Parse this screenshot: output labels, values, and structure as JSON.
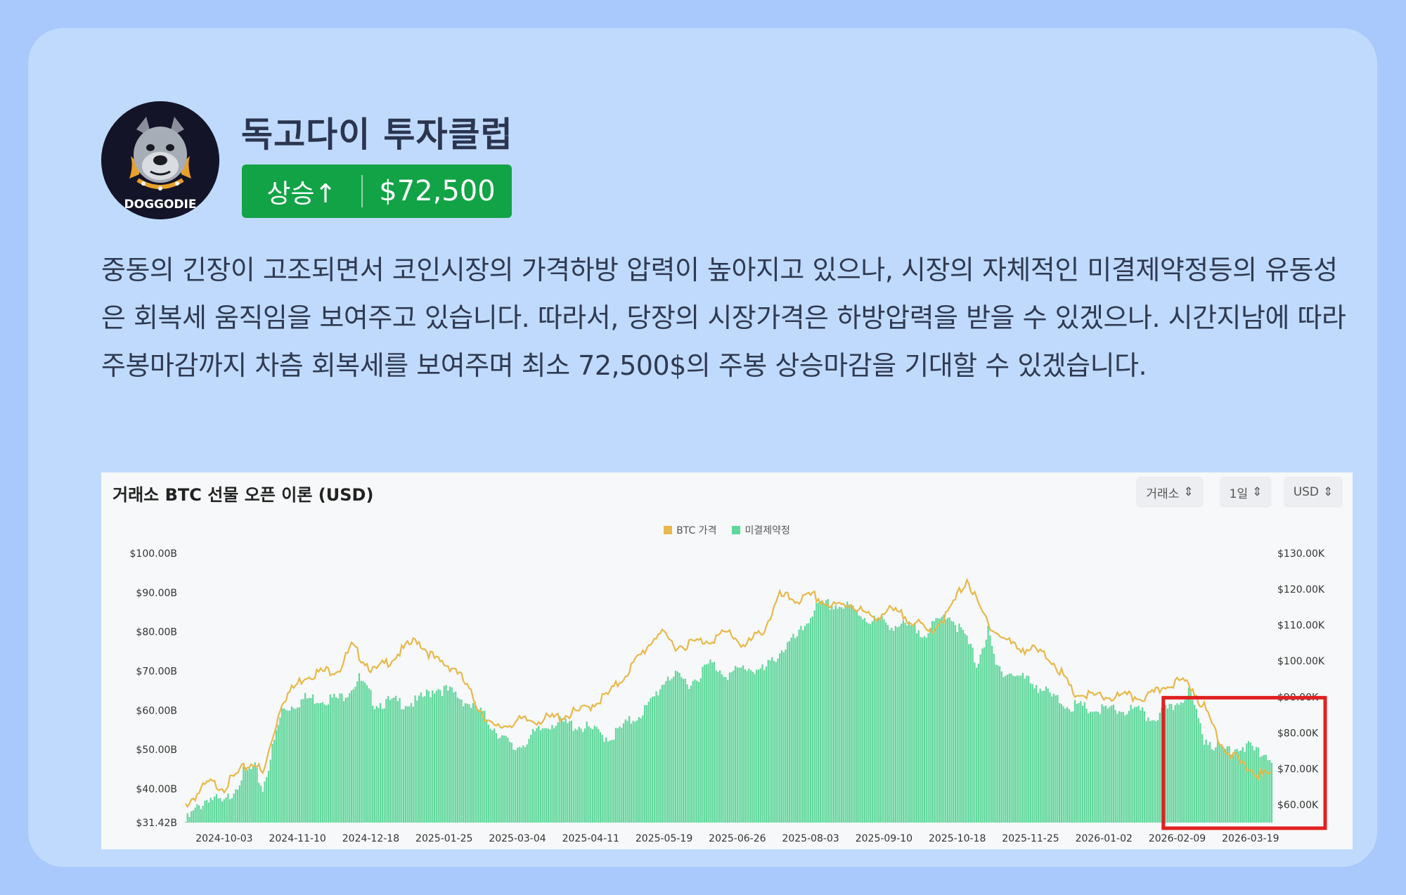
{
  "profile": {
    "name": "독고다이 투자클럽",
    "logo_text": "DOGGODIE"
  },
  "badge": {
    "direction": "상승↑",
    "price": "$72,500",
    "color": "#12a346"
  },
  "description": "중동의 긴장이 고조되면서 코인시장의 가격하방 압력이 높아지고 있으나, 시장의 자체적인 미결제약정등의 유동성은 회복세 움직임을 보여주고 있습니다. 따라서, 당장의 시장가격은 하방압력을 받을 수 있겠으나. 시간지남에 따라 주봉마감까지 차츰 회복세를 보여주며 최소 72,500$의 주봉 상승마감을 기대할 수 있겠습니다.",
  "chart_controls": {
    "exchange": "거래소",
    "interval": "1일",
    "currency": "USD"
  },
  "chart_data": {
    "type": "bar",
    "title": "거래소 BTC 선물 오픈 이론 (USD)",
    "series": [
      {
        "name": "BTC 가격",
        "chart": "line",
        "axis": "right",
        "color": "#e8b84a"
      },
      {
        "name": "미결제약정",
        "chart": "bar",
        "axis": "left",
        "color": "#5fd79b"
      }
    ],
    "categories": [
      "2024-10-03",
      "2024-11-10",
      "2024-12-18",
      "2025-01-25",
      "2025-03-04",
      "2025-04-11",
      "2025-05-19",
      "2025-06-26",
      "2025-08-03",
      "2025-09-10",
      "2025-10-18",
      "2025-11-25",
      "2026-01-02",
      "2026-02-09",
      "2026-03-19"
    ],
    "x_range": [
      "2024-09-13",
      "2026-03-30"
    ],
    "open_interest_b": [
      [
        0,
        31.6
      ],
      [
        6,
        35
      ],
      [
        12,
        38
      ],
      [
        20,
        36
      ],
      [
        30,
        44
      ],
      [
        36,
        45
      ],
      [
        40,
        40
      ],
      [
        50,
        60
      ],
      [
        62,
        63
      ],
      [
        80,
        63
      ],
      [
        90,
        68
      ],
      [
        98,
        62
      ],
      [
        110,
        62
      ],
      [
        120,
        62
      ],
      [
        130,
        66
      ],
      [
        140,
        64
      ],
      [
        152,
        60
      ],
      [
        170,
        50
      ],
      [
        190,
        57
      ],
      [
        205,
        56
      ],
      [
        220,
        53
      ],
      [
        240,
        61
      ],
      [
        250,
        69
      ],
      [
        262,
        67
      ],
      [
        272,
        72
      ],
      [
        282,
        69
      ],
      [
        290,
        71
      ],
      [
        300,
        70
      ],
      [
        308,
        75
      ],
      [
        318,
        79
      ],
      [
        326,
        86
      ],
      [
        335,
        87
      ],
      [
        345,
        86
      ],
      [
        355,
        83
      ],
      [
        365,
        82
      ],
      [
        375,
        81
      ],
      [
        385,
        80
      ],
      [
        395,
        85
      ],
      [
        405,
        78
      ],
      [
        410,
        72
      ],
      [
        416,
        80
      ],
      [
        420,
        71
      ],
      [
        430,
        69
      ],
      [
        440,
        67
      ],
      [
        450,
        63
      ],
      [
        460,
        61
      ],
      [
        472,
        60
      ],
      [
        482,
        60
      ],
      [
        492,
        60
      ],
      [
        500,
        58
      ],
      [
        510,
        60
      ],
      [
        520,
        65
      ],
      [
        528,
        53
      ],
      [
        538,
        50
      ],
      [
        548,
        51
      ],
      [
        558,
        49
      ],
      [
        565,
        48
      ],
      [
        572,
        50
      ],
      [
        578,
        54
      ]
    ],
    "btc_price_k": [
      [
        0,
        60
      ],
      [
        6,
        63
      ],
      [
        12,
        66
      ],
      [
        20,
        65
      ],
      [
        30,
        70
      ],
      [
        36,
        72
      ],
      [
        40,
        68
      ],
      [
        50,
        89
      ],
      [
        62,
        96
      ],
      [
        80,
        98
      ],
      [
        86,
        104
      ],
      [
        98,
        97
      ],
      [
        110,
        102
      ],
      [
        120,
        106
      ],
      [
        130,
        100
      ],
      [
        140,
        98
      ],
      [
        152,
        87
      ],
      [
        160,
        81
      ],
      [
        170,
        83
      ],
      [
        190,
        84
      ],
      [
        205,
        86
      ],
      [
        220,
        91
      ],
      [
        235,
        101
      ],
      [
        245,
        108
      ],
      [
        255,
        104
      ],
      [
        262,
        105
      ],
      [
        272,
        106
      ],
      [
        282,
        108
      ],
      [
        290,
        104
      ],
      [
        300,
        109
      ],
      [
        308,
        118
      ],
      [
        318,
        117
      ],
      [
        326,
        118
      ],
      [
        335,
        115
      ],
      [
        345,
        116
      ],
      [
        355,
        112
      ],
      [
        365,
        114
      ],
      [
        375,
        112
      ],
      [
        385,
        108
      ],
      [
        395,
        113
      ],
      [
        405,
        123
      ],
      [
        412,
        114
      ],
      [
        420,
        108
      ],
      [
        430,
        104
      ],
      [
        440,
        103
      ],
      [
        450,
        100
      ],
      [
        460,
        91
      ],
      [
        472,
        90
      ],
      [
        482,
        90
      ],
      [
        492,
        90
      ],
      [
        500,
        90
      ],
      [
        510,
        94
      ],
      [
        520,
        94
      ],
      [
        528,
        87
      ],
      [
        538,
        76
      ],
      [
        548,
        71
      ],
      [
        558,
        68
      ],
      [
        565,
        69
      ],
      [
        572,
        71
      ],
      [
        578,
        68
      ]
    ],
    "y_left": {
      "ticks": [
        "$31.42B",
        "$40.00B",
        "$50.00B",
        "$60.00B",
        "$70.00B",
        "$80.00B",
        "$90.00B",
        "$100.00B"
      ],
      "values": [
        31.42,
        40,
        50,
        60,
        70,
        80,
        90,
        100
      ],
      "range": [
        31.42,
        100
      ]
    },
    "y_right": {
      "ticks": [
        "$60.00K",
        "$70.00K",
        "$80.00K",
        "$90.00K",
        "$100.00K",
        "$110.00K",
        "$120.00K",
        "$130.00K"
      ],
      "values": [
        60,
        70,
        80,
        90,
        100,
        110,
        120,
        130
      ],
      "range": [
        55,
        130
      ]
    },
    "grid": false,
    "legend": "top-center",
    "annotation": {
      "type": "highlight-box",
      "from": "2026-02-04",
      "to": "2026-03-30",
      "color": "#e02020"
    }
  }
}
